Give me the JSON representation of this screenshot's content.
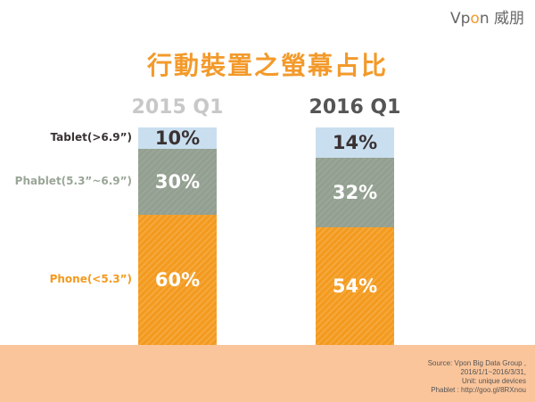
{
  "logo": {
    "text_a": "Vp",
    "text_o": "o",
    "text_b": "n 威朋"
  },
  "chart_data": {
    "type": "bar",
    "stacked": true,
    "title": "行動裝置之螢幕占比",
    "categories": [
      "2015 Q1",
      "2016 Q1"
    ],
    "series": [
      {
        "name": "Tablet(>6.9”)",
        "values": [
          10,
          14
        ],
        "color": "#c9dff0",
        "labels": [
          "10%",
          "14%"
        ]
      },
      {
        "name": "Phablet(5.3”~6.9”)",
        "values": [
          30,
          32
        ],
        "color": "#939f90",
        "labels": [
          "30%",
          "32%"
        ]
      },
      {
        "name": "Phone(<5.3”)",
        "values": [
          60,
          54
        ],
        "color": "#f39a1f",
        "labels": [
          "60%",
          "54%"
        ]
      }
    ],
    "category_colors": [
      "#c8c8c8",
      "#555555"
    ],
    "legend_colors": [
      "#3a3232",
      "#9aa697",
      "#f39a1f"
    ]
  },
  "source": [
    "Source: Vpon Big Data Group ,",
    "2016/1/1~2016/3/31,",
    "Unit: unique devices",
    "Phablet : http://goo.gl/8RXnou"
  ]
}
